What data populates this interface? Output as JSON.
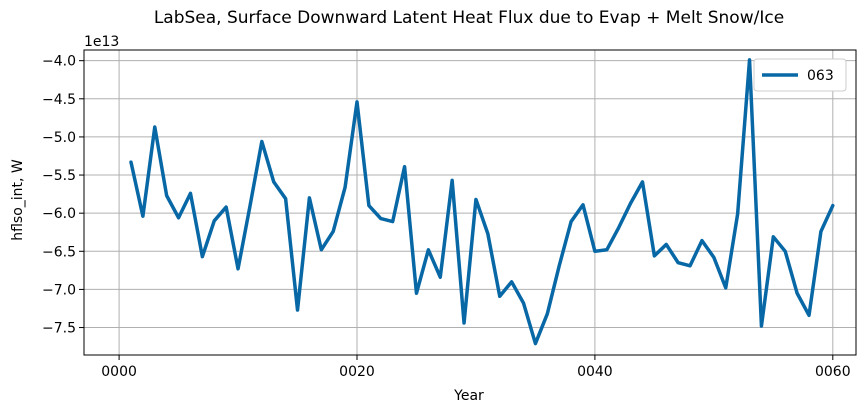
{
  "chart_data": {
    "type": "line",
    "title": "LabSea, Surface Downward Latent Heat Flux due to Evap + Melt Snow/Ice",
    "xlabel": "Year",
    "ylabel": "hflso_int, W",
    "y_offset_label": "1e13",
    "y_scale_multiplier": 10000000000000.0,
    "xlim": [
      -2.95,
      61.95
    ],
    "ylim": [
      -7.86,
      -3.86
    ],
    "x_ticks": [
      0,
      20,
      40,
      60
    ],
    "x_tick_labels": [
      "0000",
      "0020",
      "0040",
      "0060"
    ],
    "y_ticks": [
      -7.5,
      -7.0,
      -6.5,
      -6.0,
      -5.5,
      -5.0,
      -4.5,
      -4.0
    ],
    "y_tick_labels": [
      "−7.5",
      "−7.0",
      "−6.5",
      "−6.0",
      "−5.5",
      "−5.0",
      "−4.5",
      "−4.0"
    ],
    "grid": true,
    "legend_position": "top-right",
    "series": [
      {
        "name": "063",
        "color": "#0868a6",
        "x": [
          1,
          2,
          3,
          4,
          5,
          6,
          7,
          8,
          9,
          10,
          11,
          12,
          13,
          14,
          15,
          16,
          17,
          18,
          19,
          20,
          21,
          22,
          23,
          24,
          25,
          26,
          27,
          28,
          29,
          30,
          31,
          32,
          33,
          34,
          35,
          36,
          37,
          38,
          39,
          40,
          41,
          42,
          43,
          44,
          45,
          46,
          47,
          48,
          49,
          50,
          51,
          52,
          53,
          54,
          55,
          56,
          57,
          58,
          59,
          60
        ],
        "values": [
          -5.33,
          -6.04,
          -4.87,
          -5.77,
          -6.06,
          -5.74,
          -6.57,
          -6.1,
          -5.92,
          -6.73,
          -5.91,
          -5.06,
          -5.59,
          -5.81,
          -7.27,
          -5.8,
          -6.48,
          -6.24,
          -5.66,
          -4.54,
          -5.9,
          -6.07,
          -6.11,
          -5.39,
          -7.05,
          -6.48,
          -6.84,
          -5.57,
          -7.44,
          -5.82,
          -6.27,
          -7.09,
          -6.9,
          -7.18,
          -7.71,
          -7.32,
          -6.69,
          -6.11,
          -5.89,
          -6.5,
          -6.48,
          -6.19,
          -5.87,
          -5.59,
          -6.56,
          -6.41,
          -6.65,
          -6.69,
          -6.36,
          -6.58,
          -6.98,
          -6.01,
          -3.99,
          -7.48,
          -6.31,
          -6.5,
          -7.05,
          -7.34,
          -6.24,
          -5.9
        ]
      }
    ]
  }
}
